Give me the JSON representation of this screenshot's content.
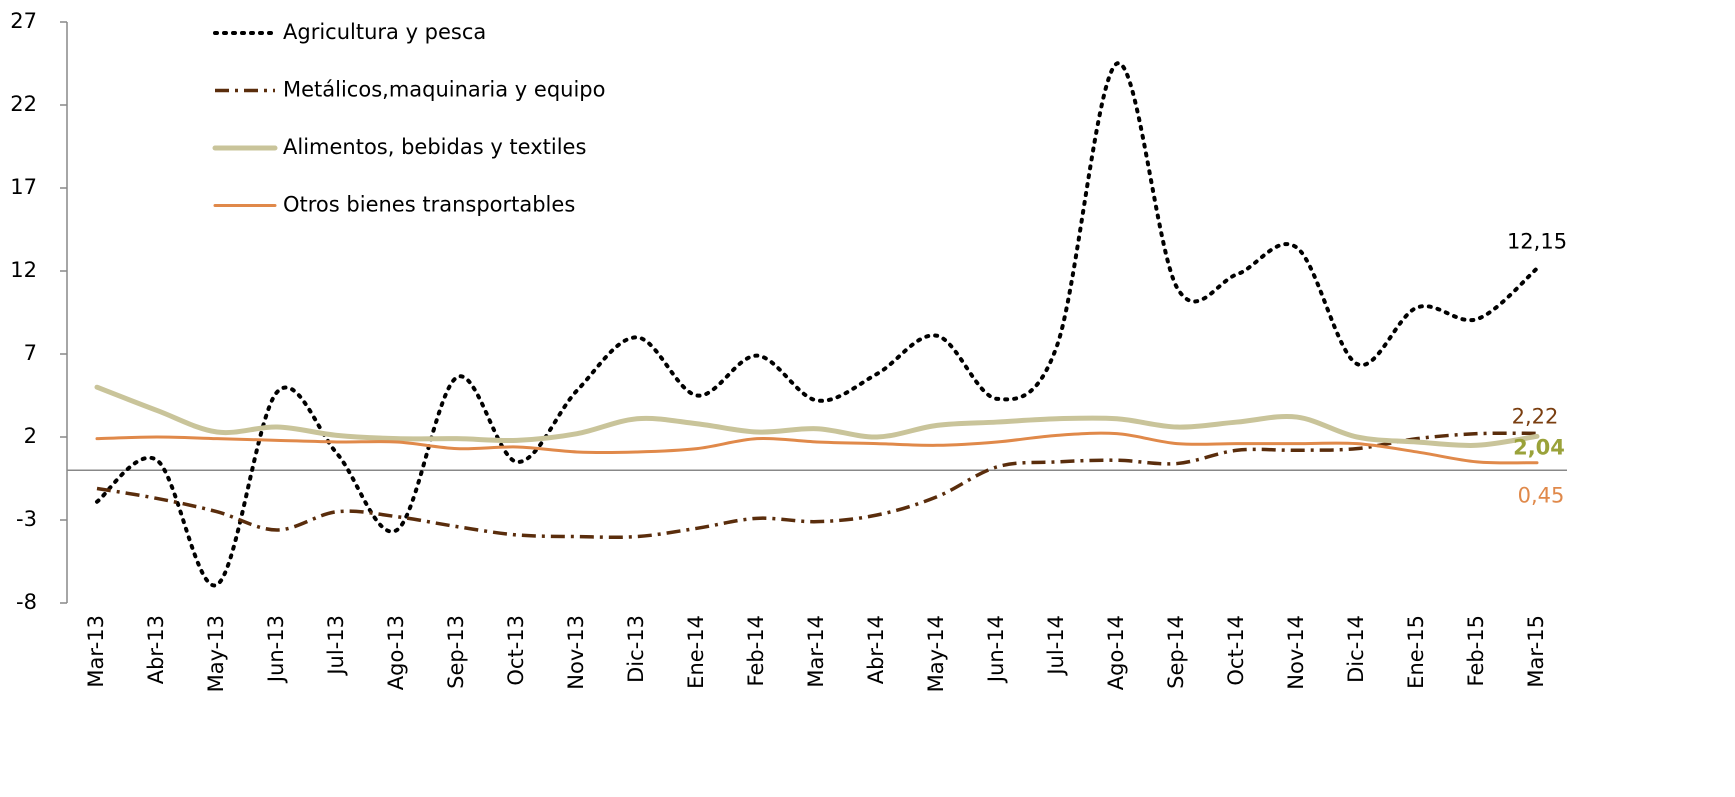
{
  "chart_data": {
    "type": "line",
    "categories": [
      "Mar-13",
      "Abr-13",
      "May-13",
      "Jun-13",
      "Jul-13",
      "Ago-13",
      "Sep-13",
      "Oct-13",
      "Nov-13",
      "Dic-13",
      "Ene-14",
      "Feb-14",
      "Mar-14",
      "Abr-14",
      "May-14",
      "Jun-14",
      "Jul-14",
      "Ago-14",
      "Sep-14",
      "Oct-14",
      "Nov-14",
      "Dic-14",
      "Ene-15",
      "Feb-15",
      "Mar-15"
    ],
    "ylim": [
      -8,
      27
    ],
    "yticks": [
      -8,
      -3,
      2,
      7,
      12,
      17,
      22,
      27
    ],
    "series": [
      {
        "name": "Agricultura y pesca",
        "color": "#000000",
        "style": "dotted",
        "values": [
          -1.9,
          0.6,
          -6.9,
          4.7,
          1.0,
          -3.6,
          5.6,
          0.5,
          4.8,
          8.0,
          4.5,
          6.9,
          4.2,
          5.8,
          8.1,
          4.3,
          7.5,
          24.5,
          11.0,
          11.8,
          13.4,
          6.4,
          9.8,
          9.1,
          12.15
        ],
        "value_labels": [
          null,
          null,
          null,
          null,
          null,
          null,
          null,
          null,
          null,
          null,
          null,
          null,
          null,
          null,
          null,
          null,
          null,
          null,
          null,
          null,
          null,
          null,
          null,
          null,
          "12,15"
        ]
      },
      {
        "name": "Metálicos,maquinaria y equipo",
        "color": "#5a2d0c",
        "style": "dashdot",
        "values": [
          -1.1,
          -1.7,
          -2.5,
          -3.6,
          -2.5,
          -2.8,
          -3.4,
          -3.9,
          -4.0,
          -4.0,
          -3.5,
          -2.9,
          -3.1,
          -2.7,
          -1.6,
          0.2,
          0.5,
          0.6,
          0.4,
          1.2,
          1.2,
          1.3,
          1.9,
          2.2,
          2.22
        ],
        "value_labels": [
          null,
          null,
          null,
          null,
          null,
          null,
          null,
          null,
          null,
          null,
          null,
          null,
          null,
          null,
          null,
          null,
          null,
          null,
          null,
          null,
          null,
          null,
          null,
          null,
          "2,22"
        ]
      },
      {
        "name": "Alimentos, bebidas y textiles",
        "color": "#c9c49a",
        "style": "solid",
        "values": [
          5.0,
          3.6,
          2.3,
          2.6,
          2.1,
          1.9,
          1.9,
          1.8,
          2.2,
          3.1,
          2.8,
          2.3,
          2.5,
          2.0,
          2.7,
          2.9,
          3.1,
          3.1,
          2.6,
          2.9,
          3.2,
          2.0,
          1.7,
          1.5,
          2.04
        ],
        "value_labels": [
          null,
          null,
          null,
          null,
          null,
          null,
          null,
          null,
          null,
          null,
          null,
          null,
          null,
          null,
          null,
          null,
          null,
          null,
          null,
          null,
          null,
          null,
          null,
          null,
          "2,04"
        ]
      },
      {
        "name": "Otros bienes transportables",
        "color": "#e0894a",
        "style": "solid",
        "values": [
          1.9,
          2.0,
          1.9,
          1.8,
          1.7,
          1.7,
          1.3,
          1.4,
          1.1,
          1.1,
          1.3,
          1.9,
          1.7,
          1.6,
          1.5,
          1.7,
          2.1,
          2.2,
          1.6,
          1.6,
          1.6,
          1.6,
          1.1,
          0.5,
          0.45
        ],
        "value_labels": [
          null,
          null,
          null,
          null,
          null,
          null,
          null,
          null,
          null,
          null,
          null,
          null,
          null,
          null,
          null,
          null,
          null,
          null,
          null,
          null,
          null,
          null,
          null,
          null,
          "0,45"
        ]
      }
    ]
  }
}
